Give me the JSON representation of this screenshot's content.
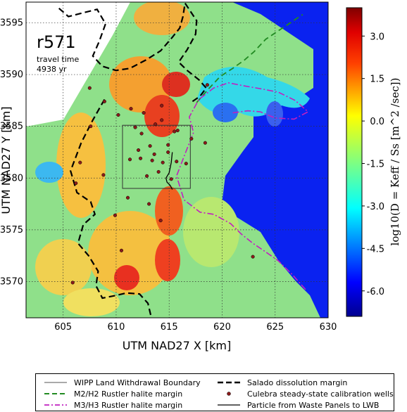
{
  "annotations": {
    "run": "r571",
    "travel_time_label": "travel time",
    "travel_time_value": "4938 yr"
  },
  "chart_data": {
    "type": "heatmap",
    "xlabel": "UTM NAD27 X [km]",
    "ylabel": "UTM NAD27 Y [km]",
    "xlim": [
      601.5,
      630
    ],
    "ylim": [
      3566.5,
      3597
    ],
    "xticks": [
      605,
      610,
      615,
      620,
      625,
      630
    ],
    "yticks": [
      3570,
      3575,
      3580,
      3585,
      3590,
      3595
    ],
    "grid": true,
    "colorbar": {
      "label": "log10(D = Keff / Ss [m^2 /sec])",
      "range": [
        -6.9,
        4.0
      ],
      "ticks": [
        "-6.0",
        "-4.5",
        "-3.0",
        "-1.5",
        "0.0",
        "1.5",
        "3.0"
      ],
      "colors": [
        "#00008f",
        "#0000ff",
        "#0080ff",
        "#00ffff",
        "#80ff80",
        "#ffff00",
        "#ff8000",
        "#ff0000",
        "#800000"
      ]
    },
    "wipp_boundary": {
      "x": [
        610.6,
        617.0
      ],
      "y": [
        3579.0,
        3585.1
      ]
    },
    "particle_path": {
      "x": [
        615.3,
        615.2,
        615.0,
        614.7,
        614.8,
        615.1,
        615.3
      ],
      "y": [
        3582.5,
        3581.5,
        3580.5,
        3580.0,
        3579.6,
        3579.3,
        3578.9
      ]
    },
    "calibration_wells": {
      "x": [
        607.5,
        608.9,
        610.2,
        611.4,
        612.6,
        613.7,
        612.4,
        614.3,
        615.8,
        617.1,
        618.4,
        614.9,
        613.2,
        612.1,
        613.6,
        614.9,
        611.3,
        612.3,
        613.4,
        614.4,
        615.7,
        616.6,
        614.0,
        612.9,
        615.2,
        618.6,
        622.9,
        605.9,
        610.5,
        607.6,
        606.6,
        608.8,
        611.1,
        613.1,
        614.2,
        609.9,
        606.2,
        615.5,
        614.3,
        611.8
      ],
      "y": [
        3588.7,
        3587.4,
        3586.1,
        3586.7,
        3586.3,
        3585.2,
        3584.3,
        3585.6,
        3584.6,
        3583.8,
        3583.4,
        3583.2,
        3583.1,
        3582.7,
        3582.3,
        3582.5,
        3581.8,
        3581.9,
        3581.7,
        3581.5,
        3581.6,
        3581.4,
        3580.6,
        3580.2,
        3579.9,
        3589.0,
        3572.4,
        3569.9,
        3573.0,
        3585.0,
        3581.5,
        3580.3,
        3578.1,
        3577.5,
        3575.9,
        3576.4,
        3579.5,
        3584.5,
        3587.0,
        3584.9
      ]
    },
    "salado_margin": {
      "x": [
        604.6,
        605.5,
        607.0,
        608.2,
        609.0,
        608.4,
        607.8,
        608.7,
        610.0,
        611.3,
        612.8,
        614.2,
        615.3,
        616.0,
        616.3,
        616.5,
        617.6,
        617.5,
        616.7,
        615.9,
        616.7,
        617.8,
        618.5,
        617.9,
        617.2
      ],
      "y": [
        3596.4,
        3595.6,
        3596.0,
        3596.3,
        3594.9,
        3593.2,
        3591.8,
        3590.8,
        3590.4,
        3590.6,
        3591.4,
        3592.3,
        3593.6,
        3594.5,
        3595.6,
        3596.9,
        3595.2,
        3593.9,
        3592.4,
        3591.2,
        3590.4,
        3589.5,
        3588.7,
        3587.9,
        3587.4
      ]
    },
    "salado_margin_west": {
      "x": [
        608.9,
        607.8,
        606.7,
        605.7,
        606.3,
        607.6,
        608.0,
        606.9,
        606.4,
        607.4,
        608.3,
        608.1,
        608.7,
        609.7,
        611.0,
        612.2,
        613.0,
        613.3
      ],
      "y": [
        3587.6,
        3585.6,
        3583.4,
        3580.7,
        3578.6,
        3577.7,
        3576.5,
        3575.5,
        3573.7,
        3572.5,
        3571.0,
        3569.6,
        3568.4,
        3568.6,
        3568.9,
        3568.8,
        3567.9,
        3566.6
      ]
    },
    "m2h2_margin": {
      "x": [
        617.6,
        618.7,
        619.8,
        621.0,
        622.1,
        623.0,
        624.1,
        625.4,
        626.3,
        627.0,
        627.6
      ],
      "y": [
        3587.3,
        3588.6,
        3589.8,
        3590.6,
        3591.4,
        3592.2,
        3593.4,
        3594.3,
        3594.9,
        3595.4,
        3595.8
      ]
    },
    "m3h3_margin": {
      "x": [
        621.0,
        622.4,
        623.6,
        625.0,
        626.8,
        628.1,
        626.9,
        625.3,
        623.8,
        622.1,
        620.6,
        619.2,
        617.8,
        616.9,
        617.3,
        616.6,
        615.7,
        616.4,
        617.9,
        619.2,
        620.8,
        621.8,
        622.9,
        624.2,
        625.3,
        626.6,
        627.9
      ],
      "y": [
        3586.3,
        3586.5,
        3586.4,
        3585.8,
        3585.7,
        3586.4,
        3587.5,
        3588.3,
        3588.6,
        3588.9,
        3589.2,
        3588.7,
        3587.6,
        3585.9,
        3584.4,
        3582.6,
        3580.2,
        3577.9,
        3576.7,
        3576.5,
        3575.6,
        3574.6,
        3573.7,
        3572.8,
        3572.0,
        3570.7,
        3569.2
      ]
    },
    "legend": [
      {
        "label": "WIPP Land Withdrawal Boundary",
        "style": "thin-solid",
        "color": "#555555"
      },
      {
        "label": "M2/H2 Rustler halite margin",
        "style": "dashed",
        "color": "#228b22"
      },
      {
        "label": "M3/H3 Rustler halite margin",
        "style": "dashdot",
        "color": "#c020c0"
      },
      {
        "label": "Salado dissolution margin",
        "style": "thick-dashed",
        "color": "#000000"
      },
      {
        "label": "Culebra steady-state calibration wells",
        "style": "dot",
        "color": "#8b1a1a"
      },
      {
        "label": "Particle from Waste Panels to LWB",
        "style": "solid",
        "color": "#000000"
      }
    ]
  }
}
